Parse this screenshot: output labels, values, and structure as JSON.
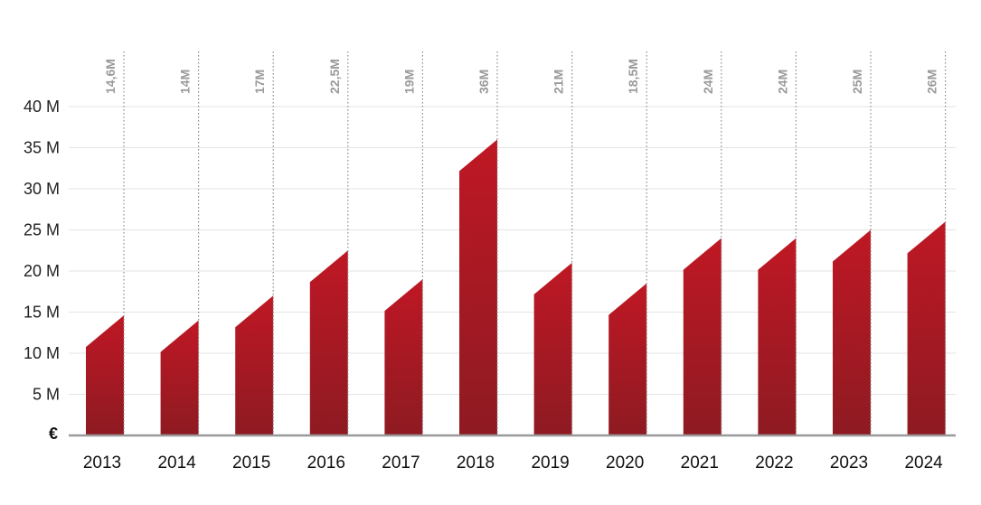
{
  "chart_data": {
    "type": "bar",
    "title": "",
    "xlabel": "",
    "ylabel": "",
    "unit_label": "€",
    "categories": [
      "2013",
      "2014",
      "2015",
      "2016",
      "2017",
      "2018",
      "2019",
      "2020",
      "2021",
      "2022",
      "2023",
      "2024"
    ],
    "values": [
      14.6,
      14,
      17,
      22.5,
      19,
      36,
      21,
      18.5,
      24,
      24,
      25,
      26
    ],
    "data_labels": [
      "14,6M",
      "14M",
      "17M",
      "22,5M",
      "19M",
      "36M",
      "21M",
      "18,5M",
      "24M",
      "24M",
      "25M",
      "26M"
    ],
    "yticks": [
      {
        "value": 5,
        "label": "5 M"
      },
      {
        "value": 10,
        "label": "10 M"
      },
      {
        "value": 15,
        "label": "15 M"
      },
      {
        "value": 20,
        "label": "20 M"
      },
      {
        "value": 25,
        "label": "25 M"
      },
      {
        "value": 30,
        "label": "30 M"
      },
      {
        "value": 35,
        "label": "35 M"
      },
      {
        "value": 40,
        "label": "40 M"
      }
    ],
    "ylim": [
      0,
      40
    ],
    "grid": true,
    "bar_color_top": "#bf1824",
    "bar_color_bottom": "#8e1a22",
    "grid_color": "#e3e3e3",
    "axis_color": "#9a9a9a"
  }
}
